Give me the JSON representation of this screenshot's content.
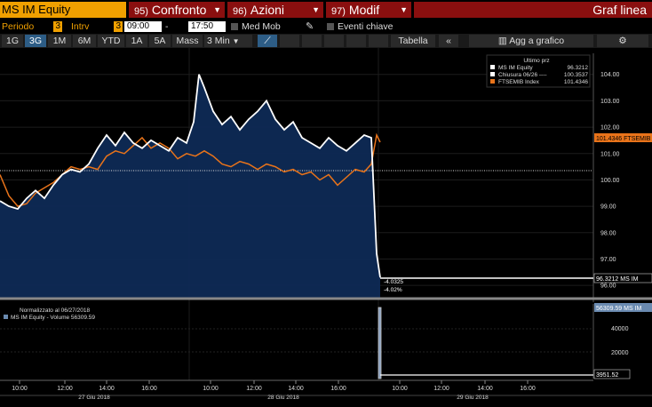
{
  "header": {
    "ticker": "MS IM Equity",
    "buttons": [
      {
        "num": "95)",
        "label": "Confronto"
      },
      {
        "num": "96)",
        "label": "Azioni"
      },
      {
        "num": "97)",
        "label": "Modif"
      }
    ],
    "view_title": "Graf linea"
  },
  "settings": {
    "periodo_label": "Periodo",
    "periodo_value": "3",
    "intrv_label": "Intrv",
    "intrv_value": "3",
    "time_start": "09:00",
    "time_end": "17:50",
    "med_mob": "Med Mob",
    "eventi": "Eventi chiave"
  },
  "ranges": [
    "1G",
    "3G",
    "1M",
    "6M",
    "YTD",
    "1A",
    "5A",
    "Mass"
  ],
  "active_range": "3G",
  "interval_select": "3 Min",
  "toolbar": {
    "tabella": "Tabella",
    "collapse": "«",
    "add_chart": "Agg a grafico"
  },
  "colors": {
    "security": "#ffffff",
    "index": "#e8731a",
    "fill": "#0e2a55",
    "accent": "#f0a000"
  },
  "legend": {
    "title": "Ultimo prz",
    "rows": [
      {
        "label": "MS IM Equity",
        "value": "96.3212"
      },
      {
        "label": "Chiusura 06/26 ----",
        "value": "100.3537"
      },
      {
        "label": "FTSEMIB Index",
        "value": "101.4346"
      }
    ]
  },
  "tags": {
    "ftse": "101.4346 FTSEMIB",
    "ms": "96.3212  MS IM",
    "drop_abs": "-4.0325",
    "drop_pct": "-4.02%",
    "vol_tag": "56309.59 MS IM",
    "vol_low": "3951.52"
  },
  "volume_panel": {
    "note": "Normalizzato al 06/27/2018",
    "legend": "MS IM Equity - Volume 56309.59"
  },
  "x_axis": {
    "times": [
      "10:00",
      "12:00",
      "14:00",
      "16:00",
      "10:00",
      "12:00",
      "14:00",
      "16:00",
      "10:00",
      "12:00",
      "14:00",
      "16:00"
    ],
    "dates": [
      "27 Giu 2018",
      "28 Giu 2018",
      "29 Giu 2018"
    ]
  },
  "chart_data": {
    "type": "line",
    "ylim": [
      95.5,
      104.8
    ],
    "yticks": [
      "104.00",
      "103.00",
      "102.00",
      "101.00",
      "100.00",
      "99.00",
      "98.00",
      "97.00",
      "96.00"
    ],
    "reference_close": 100.3537,
    "series": [
      {
        "name": "MS IM Equity",
        "x": [
          0,
          10,
          20,
          30,
          40,
          50,
          60,
          70,
          80,
          90,
          100,
          110,
          120,
          130,
          140,
          150,
          160,
          170,
          180,
          190,
          200,
          210,
          218,
          224,
          230,
          240,
          250,
          260,
          270,
          280,
          290,
          300,
          310,
          320,
          330,
          340,
          350,
          360,
          370,
          380,
          390,
          400,
          410,
          418,
          424,
          428
        ],
        "values": [
          99.2,
          99.0,
          98.9,
          99.3,
          99.6,
          99.3,
          99.8,
          100.2,
          100.4,
          100.3,
          100.6,
          101.2,
          101.7,
          101.3,
          101.8,
          101.4,
          101.2,
          101.5,
          101.3,
          101.1,
          101.6,
          101.4,
          102.2,
          104.0,
          103.5,
          102.6,
          102.1,
          102.4,
          101.9,
          102.3,
          102.6,
          103.0,
          102.3,
          101.9,
          102.2,
          101.6,
          101.4,
          101.2,
          101.6,
          101.3,
          101.1,
          101.4,
          101.7,
          101.6,
          97.2,
          96.3
        ]
      },
      {
        "name": "FTSEMIB Index",
        "x": [
          0,
          10,
          20,
          30,
          40,
          50,
          60,
          70,
          80,
          90,
          100,
          110,
          120,
          130,
          140,
          150,
          160,
          170,
          180,
          190,
          200,
          210,
          220,
          230,
          240,
          250,
          260,
          270,
          280,
          290,
          300,
          310,
          320,
          330,
          340,
          350,
          360,
          370,
          380,
          390,
          400,
          410,
          418,
          424,
          428
        ],
        "values": [
          100.2,
          99.4,
          99.0,
          99.1,
          99.5,
          99.7,
          99.9,
          100.2,
          100.5,
          100.4,
          100.5,
          100.4,
          100.9,
          101.1,
          101.0,
          101.3,
          101.6,
          101.2,
          101.4,
          101.2,
          100.8,
          101.0,
          100.9,
          101.1,
          100.9,
          100.6,
          100.5,
          100.7,
          100.6,
          100.4,
          100.6,
          100.5,
          100.3,
          100.4,
          100.2,
          100.3,
          100.0,
          100.2,
          99.8,
          100.1,
          100.4,
          100.3,
          100.6,
          101.7,
          101.43
        ]
      }
    ],
    "volume": {
      "ylim": [
        0,
        55000
      ],
      "yticks": [
        "40000",
        "20000"
      ],
      "spike_value": 56309.59
    }
  }
}
